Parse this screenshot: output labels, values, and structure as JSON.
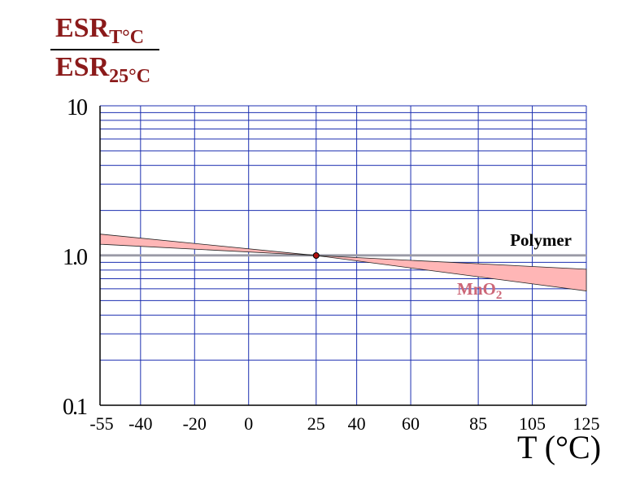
{
  "chart_data": {
    "type": "area",
    "title": "",
    "ylabel": {
      "numerator_main": "ESR",
      "numerator_sub": "T°C",
      "denominator_main": "ESR",
      "denominator_sub": "25°C"
    },
    "xlabel": "T (°C)",
    "xlim": [
      -55,
      125
    ],
    "ylim": [
      0.1,
      10
    ],
    "yscale": "log",
    "x_ticks": [
      -55,
      -40,
      -20,
      0,
      25,
      40,
      60,
      85,
      105,
      125
    ],
    "x_tick_labels": [
      "-55",
      "-40",
      "-20",
      "0",
      "25",
      "40",
      "60",
      "85",
      "105",
      "125"
    ],
    "y_ticks": [
      0.1,
      1.0,
      10
    ],
    "y_tick_labels": [
      "0.1",
      "1.0",
      "10"
    ],
    "grid": true,
    "reference_point": {
      "x": 25,
      "y": 1.0
    },
    "series": [
      {
        "name": "Polymer",
        "color": "#9a9aa6",
        "x": [
          -55,
          125
        ],
        "upper": [
          1.02,
          1.02
        ],
        "lower": [
          0.985,
          0.985
        ]
      },
      {
        "name": "MnO2",
        "color": "#ffb6b6",
        "x": [
          -55,
          25,
          125
        ],
        "upper": [
          1.39,
          1.0,
          0.81
        ],
        "lower": [
          1.19,
          1.0,
          0.58
        ]
      }
    ],
    "series_labels": [
      {
        "text": "Polymer",
        "color": "#000000"
      },
      {
        "text": "MnO",
        "sub": "2",
        "color": "#cc6677"
      }
    ]
  }
}
